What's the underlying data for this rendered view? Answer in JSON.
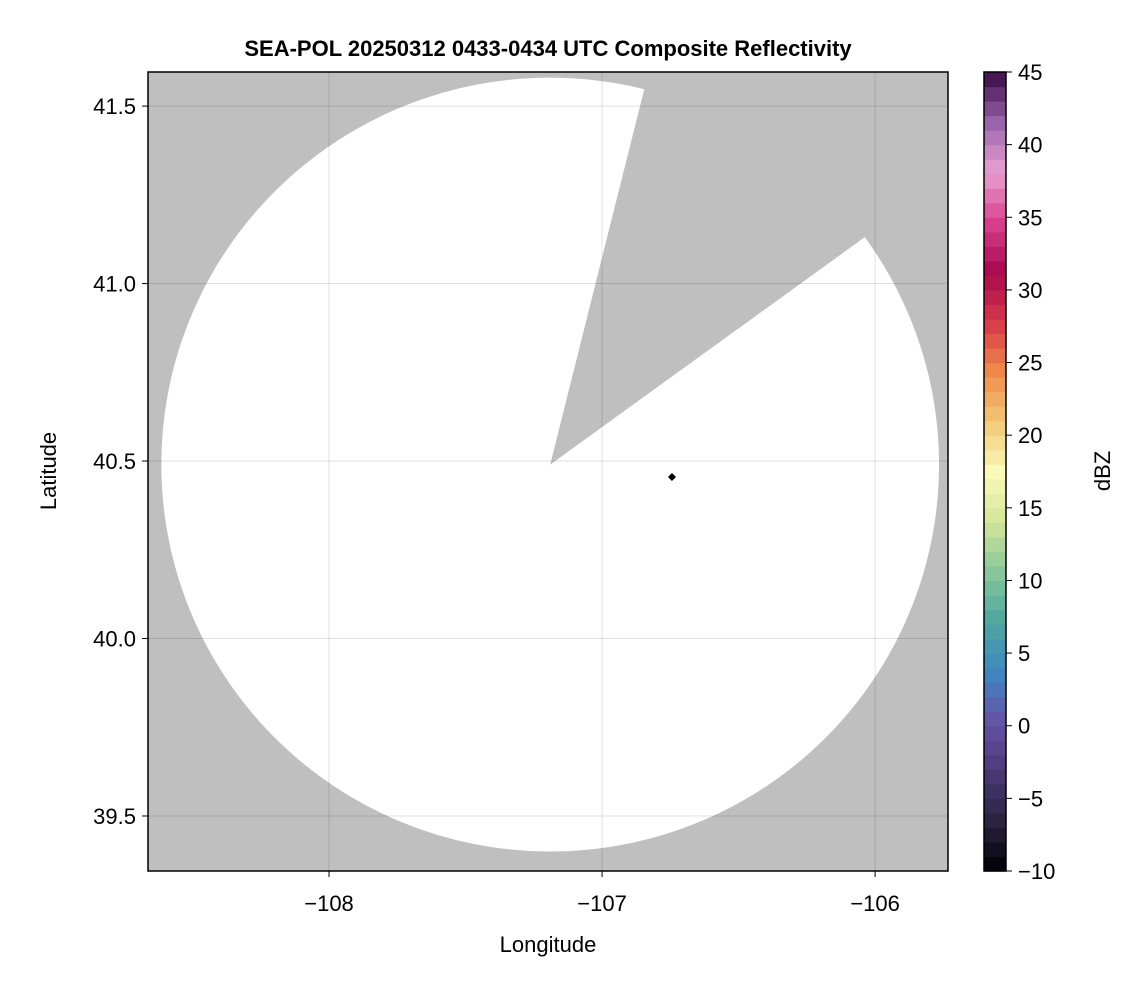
{
  "chart_data": {
    "type": "heatmap",
    "title": "SEA-POL 20250312 0433-0434 UTC Composite Reflectivity",
    "xlabel": "Longitude",
    "ylabel": "Latitude",
    "xlim": [
      -108.663,
      -105.733
    ],
    "ylim": [
      39.345,
      41.596
    ],
    "xticks": [
      -108,
      -107,
      -106
    ],
    "xtick_labels": [
      "−108",
      "−107",
      "−106"
    ],
    "yticks": [
      39.5,
      40.0,
      40.5,
      41.0,
      41.5
    ],
    "ytick_labels": [
      "39.5",
      "40.0",
      "40.5",
      "41.0",
      "41.5"
    ],
    "grid": true,
    "background_color": "#bfbfbf",
    "radar": {
      "center_lon": -107.19,
      "center_lat": 40.49,
      "range_deg_lat": 1.09,
      "blocked_sector_azimuth_deg": [
        14.5,
        54
      ],
      "coverage_color": "#ffffff",
      "all_values_below_threshold": true
    },
    "marker": {
      "lon": -106.744,
      "lat": 40.455,
      "shape": "diamond",
      "color": "#000000"
    },
    "colorbar": {
      "label": "dBZ",
      "range": [
        -10,
        45
      ],
      "step": 1,
      "ticks": [
        -10,
        -5,
        0,
        5,
        10,
        15,
        20,
        25,
        30,
        35,
        40,
        45
      ],
      "tick_labels": [
        "−10",
        "−5",
        "0",
        "5",
        "10",
        "15",
        "20",
        "25",
        "30",
        "35",
        "40",
        "45"
      ],
      "colormap_stops": [
        "#000004",
        "#2a2440",
        "#4a3a78",
        "#6653a6",
        "#3f88c0",
        "#4fa6a0",
        "#88c79a",
        "#d3e69a",
        "#fbfab8",
        "#f1c877",
        "#ef8a49",
        "#d8394a",
        "#a8084e",
        "#d9418e",
        "#e8a0d0",
        "#9a64aa",
        "#3a0a48"
      ]
    }
  }
}
